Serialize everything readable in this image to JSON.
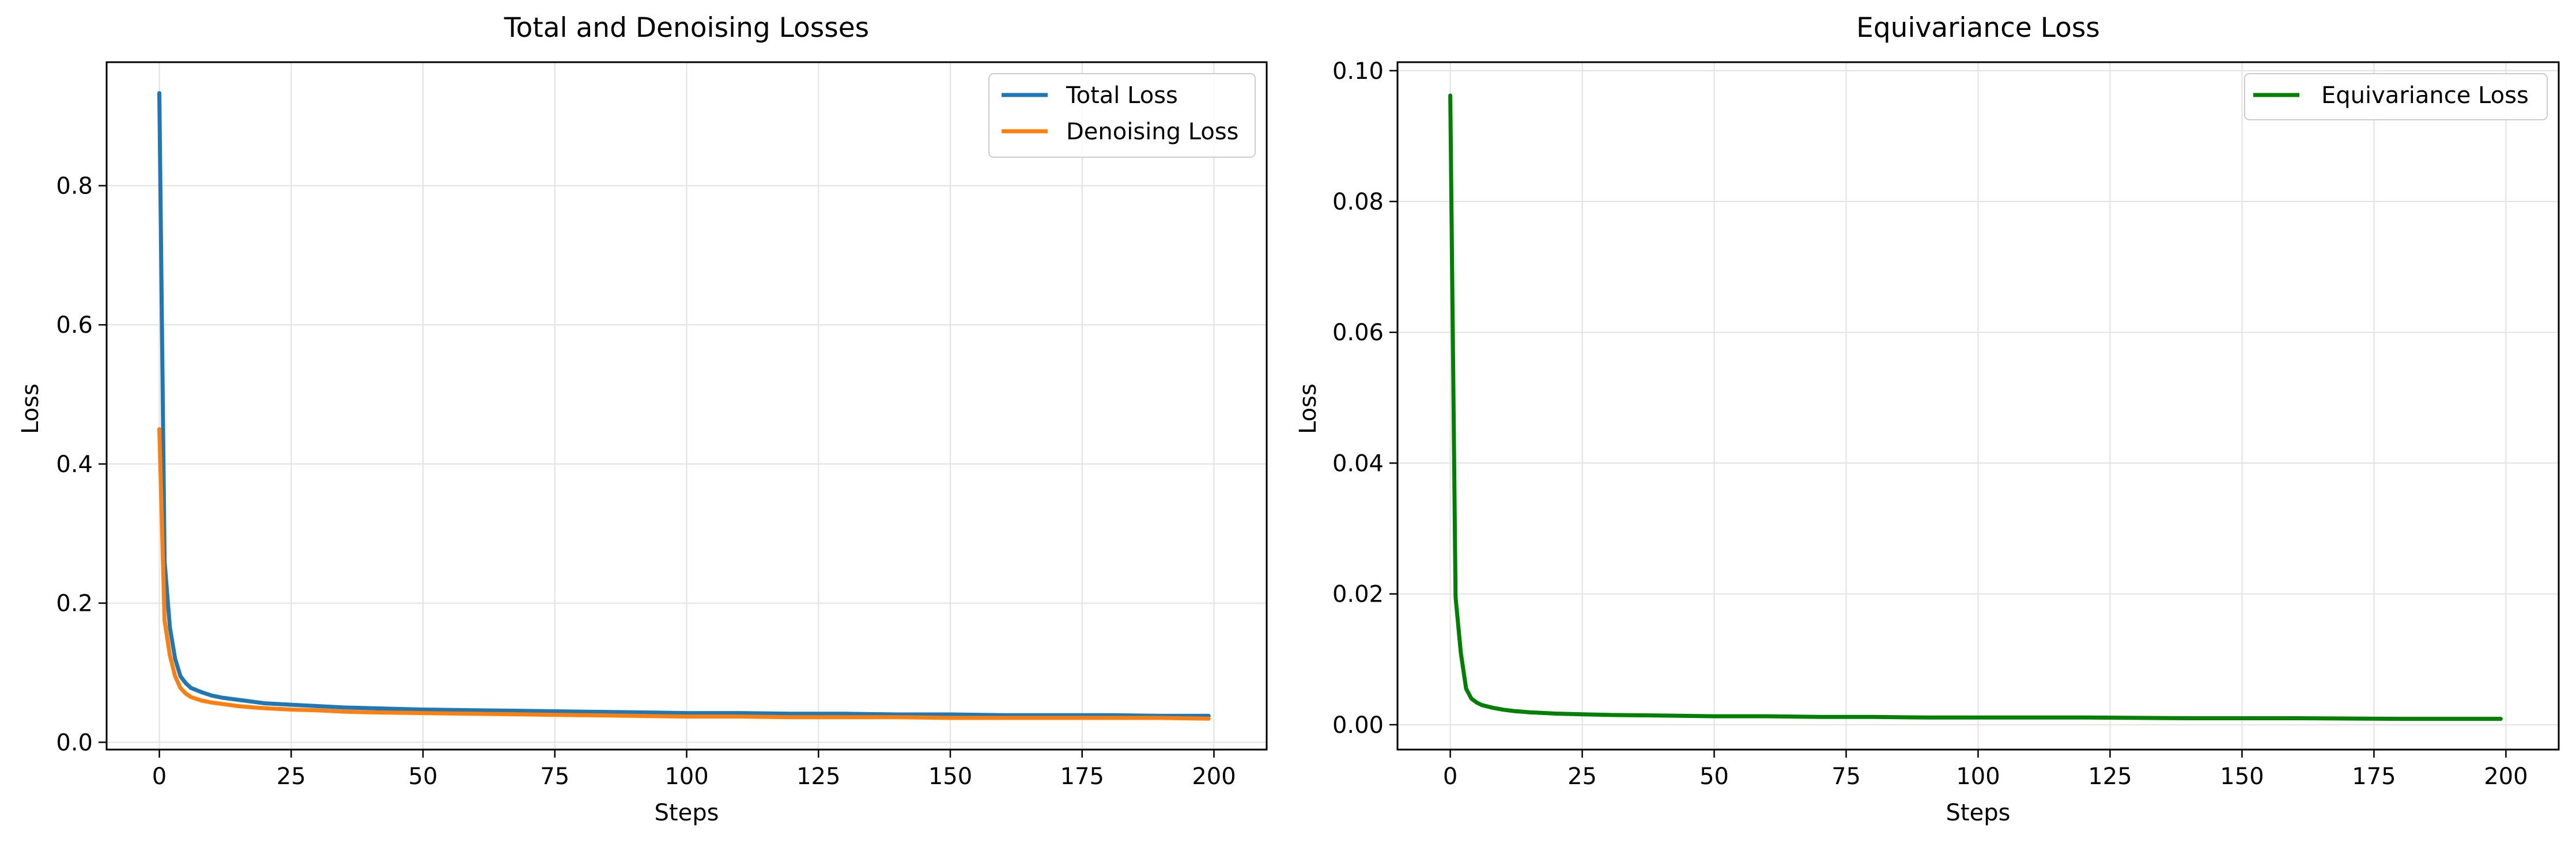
{
  "chart_data": [
    {
      "type": "line",
      "title": "Total and Denoising Losses",
      "xlabel": "Steps",
      "ylabel": "Loss",
      "xlim": [
        -10,
        210
      ],
      "ylim": [
        -0.0105,
        0.9775
      ],
      "xticks": [
        0,
        25,
        50,
        75,
        100,
        125,
        150,
        175,
        200
      ],
      "xtick_labels": [
        "0",
        "25",
        "50",
        "75",
        "100",
        "125",
        "150",
        "175",
        "200"
      ],
      "yticks": [
        0.0,
        0.2,
        0.4,
        0.6,
        0.8
      ],
      "ytick_labels": [
        "0.0",
        "0.2",
        "0.4",
        "0.6",
        "0.8"
      ],
      "grid": true,
      "legend_position": "upper right",
      "series": [
        {
          "name": "Total Loss",
          "color": "#1f77b4",
          "x": [
            0,
            1,
            2,
            3,
            4,
            5,
            6,
            8,
            10,
            12,
            15,
            18,
            20,
            25,
            30,
            35,
            40,
            50,
            60,
            70,
            80,
            90,
            100,
            110,
            120,
            130,
            140,
            150,
            160,
            170,
            180,
            190,
            199
          ],
          "y": [
            0.933,
            0.26,
            0.165,
            0.12,
            0.095,
            0.085,
            0.078,
            0.072,
            0.067,
            0.064,
            0.061,
            0.058,
            0.056,
            0.054,
            0.052,
            0.05,
            0.049,
            0.047,
            0.046,
            0.045,
            0.044,
            0.043,
            0.042,
            0.042,
            0.041,
            0.041,
            0.04,
            0.04,
            0.039,
            0.039,
            0.039,
            0.038,
            0.038
          ]
        },
        {
          "name": "Denoising Loss",
          "color": "#ff7f0e",
          "x": [
            0,
            1,
            2,
            3,
            4,
            5,
            6,
            8,
            10,
            12,
            15,
            18,
            20,
            25,
            30,
            35,
            40,
            50,
            60,
            70,
            80,
            90,
            100,
            110,
            120,
            130,
            140,
            150,
            160,
            170,
            180,
            190,
            199
          ],
          "y": [
            0.45,
            0.175,
            0.125,
            0.095,
            0.078,
            0.07,
            0.065,
            0.06,
            0.057,
            0.055,
            0.052,
            0.05,
            0.049,
            0.047,
            0.046,
            0.044,
            0.043,
            0.042,
            0.041,
            0.04,
            0.039,
            0.038,
            0.037,
            0.037,
            0.036,
            0.036,
            0.036,
            0.035,
            0.035,
            0.035,
            0.035,
            0.035,
            0.034
          ]
        }
      ]
    },
    {
      "type": "line",
      "title": "Equivariance Loss",
      "xlabel": "Steps",
      "ylabel": "Loss",
      "xlim": [
        -10,
        210
      ],
      "ylim": [
        -0.0038,
        0.1013
      ],
      "xticks": [
        0,
        25,
        50,
        75,
        100,
        125,
        150,
        175,
        200
      ],
      "xtick_labels": [
        "0",
        "25",
        "50",
        "75",
        "100",
        "125",
        "150",
        "175",
        "200"
      ],
      "yticks": [
        0.0,
        0.02,
        0.04,
        0.06,
        0.08,
        0.1
      ],
      "ytick_labels": [
        "0.00",
        "0.02",
        "0.04",
        "0.06",
        "0.08",
        "0.10"
      ],
      "grid": true,
      "legend_position": "upper right",
      "series": [
        {
          "name": "Equivariance Loss",
          "color": "#008000",
          "x": [
            0,
            1,
            2,
            3,
            4,
            5,
            6,
            8,
            10,
            12,
            15,
            20,
            25,
            30,
            40,
            50,
            60,
            70,
            80,
            90,
            100,
            120,
            140,
            160,
            180,
            199
          ],
          "y": [
            0.0962,
            0.0195,
            0.011,
            0.0055,
            0.004,
            0.0034,
            0.003,
            0.0026,
            0.0023,
            0.0021,
            0.0019,
            0.0017,
            0.0016,
            0.0015,
            0.0014,
            0.0013,
            0.0013,
            0.0012,
            0.0012,
            0.0011,
            0.0011,
            0.0011,
            0.001,
            0.001,
            0.0009,
            0.0009
          ]
        }
      ]
    }
  ]
}
